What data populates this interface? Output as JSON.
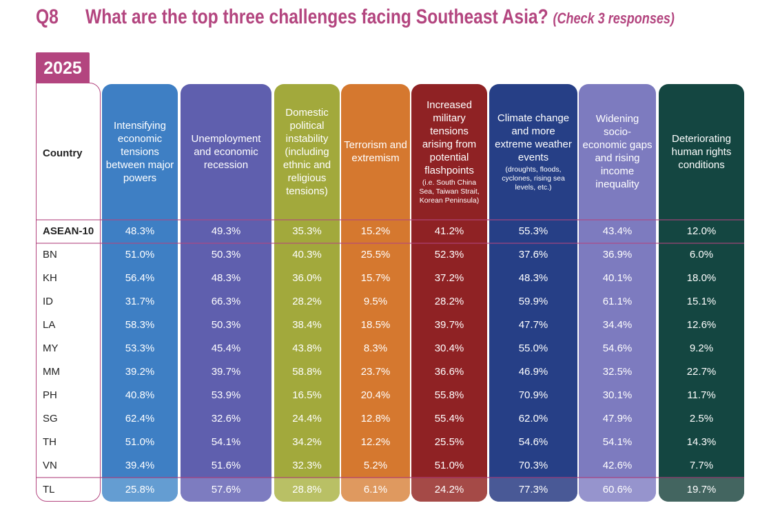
{
  "header": {
    "q_label": "Q8",
    "question": "What are the top three challenges facing Southeast Asia?",
    "note": "(Check 3 responses)",
    "year": "2025"
  },
  "chart_data": {
    "type": "table",
    "country_header": "Country",
    "columns": [
      {
        "label": "Intensifying economic tensions between major powers",
        "sub": "",
        "color": "#3e7fc4"
      },
      {
        "label": "Unemployment and economic recession",
        "sub": "",
        "color": "#5f5fae"
      },
      {
        "label": "Domestic political instability (including ethnic and religious tensions)",
        "sub": "",
        "color": "#a2a93c"
      },
      {
        "label": "Terrorism and extremism",
        "sub": "",
        "color": "#d5782f"
      },
      {
        "label": "Increased military tensions arising from potential flashpoints",
        "sub": "(i.e. South China Sea, Taiwan Strait, Korean Peninsula)",
        "color": "#8f2224"
      },
      {
        "label": "Climate change and more extreme weather events",
        "sub": "(droughts, floods, cyclones, rising sea levels, etc.)",
        "color": "#263f86"
      },
      {
        "label": "Widening socio-economic gaps and rising income inequality",
        "sub": "",
        "color": "#7d7bbf"
      },
      {
        "label": "Deteriorating human rights conditions",
        "sub": "",
        "color": "#144641"
      }
    ],
    "rows": [
      {
        "country": "ASEAN-10",
        "values": [
          "48.3%",
          "49.3%",
          "35.3%",
          "15.2%",
          "41.2%",
          "55.3%",
          "43.4%",
          "12.0%"
        ]
      },
      {
        "country": "BN",
        "values": [
          "51.0%",
          "50.3%",
          "40.3%",
          "25.5%",
          "52.3%",
          "37.6%",
          "36.9%",
          "6.0%"
        ]
      },
      {
        "country": "KH",
        "values": [
          "56.4%",
          "48.3%",
          "36.0%",
          "15.7%",
          "37.2%",
          "48.3%",
          "40.1%",
          "18.0%"
        ]
      },
      {
        "country": "ID",
        "values": [
          "31.7%",
          "66.3%",
          "28.2%",
          "9.5%",
          "28.2%",
          "59.9%",
          "61.1%",
          "15.1%"
        ]
      },
      {
        "country": "LA",
        "values": [
          "58.3%",
          "50.3%",
          "38.4%",
          "18.5%",
          "39.7%",
          "47.7%",
          "34.4%",
          "12.6%"
        ]
      },
      {
        "country": "MY",
        "values": [
          "53.3%",
          "45.4%",
          "43.8%",
          "8.3%",
          "30.4%",
          "55.0%",
          "54.6%",
          "9.2%"
        ]
      },
      {
        "country": "MM",
        "values": [
          "39.2%",
          "39.7%",
          "58.8%",
          "23.7%",
          "36.6%",
          "46.9%",
          "32.5%",
          "22.7%"
        ]
      },
      {
        "country": "PH",
        "values": [
          "40.8%",
          "53.9%",
          "16.5%",
          "20.4%",
          "55.8%",
          "70.9%",
          "30.1%",
          "11.7%"
        ]
      },
      {
        "country": "SG",
        "values": [
          "62.4%",
          "32.6%",
          "24.4%",
          "12.8%",
          "55.4%",
          "62.0%",
          "47.9%",
          "2.5%"
        ]
      },
      {
        "country": "TH",
        "values": [
          "51.0%",
          "54.1%",
          "34.2%",
          "12.2%",
          "25.5%",
          "54.6%",
          "54.1%",
          "14.3%"
        ]
      },
      {
        "country": "VN",
        "values": [
          "39.4%",
          "51.6%",
          "32.3%",
          "5.2%",
          "51.0%",
          "70.3%",
          "42.6%",
          "7.7%"
        ]
      },
      {
        "country": "TL",
        "values": [
          "25.8%",
          "57.6%",
          "28.8%",
          "6.1%",
          "24.2%",
          "77.3%",
          "60.6%",
          "19.7%"
        ]
      }
    ],
    "tl_colors": [
      "#6da3d6",
      "#8482c4",
      "#bec46e",
      "#e0a06a",
      "#a9534f",
      "#525f9a",
      "#9c9ad0",
      "#4e6d68"
    ]
  }
}
